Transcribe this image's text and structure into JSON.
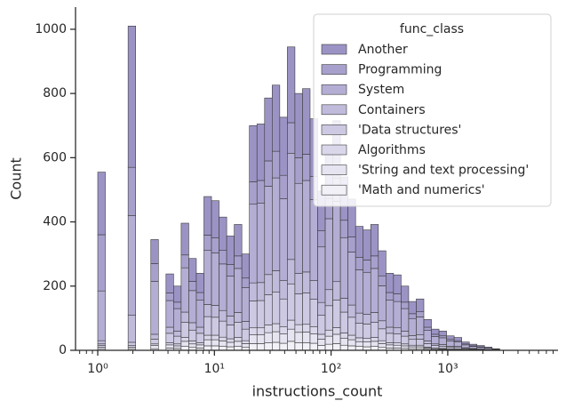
{
  "chart_data": {
    "type": "histogram",
    "stacked": true,
    "xlabel": "instructions_count",
    "ylabel": "Count",
    "xlog": true,
    "xlim": [
      0.645,
      8810
    ],
    "ylim": [
      0,
      1069
    ],
    "xticks": [
      {
        "value": 1,
        "label": "10⁰"
      },
      {
        "value": 10,
        "label": "10¹"
      },
      {
        "value": 100,
        "label": "10²"
      },
      {
        "value": 1000,
        "label": "10³"
      }
    ],
    "xticks_minor": [
      0.7,
      0.8,
      0.9,
      2,
      3,
      4,
      5,
      6,
      7,
      8,
      9,
      20,
      30,
      40,
      50,
      60,
      70,
      80,
      90,
      200,
      300,
      400,
      500,
      600,
      700,
      800,
      900,
      2000,
      3000,
      4000,
      5000,
      6000,
      7000,
      8000
    ],
    "yticks": [
      0,
      200,
      400,
      600,
      800,
      1000
    ],
    "legend_title": "func_class",
    "legend_position": "upper right",
    "edgecolor": "#3a3a3a",
    "bins": [
      1,
      1.161,
      1.349,
      1.567,
      1.82,
      2.113,
      2.455,
      2.851,
      3.311,
      3.846,
      4.467,
      5.188,
      6.026,
      6.998,
      8.128,
      9.441,
      10.96,
      12.74,
      14.79,
      17.18,
      19.95,
      23.17,
      26.92,
      31.26,
      36.31,
      42.17,
      48.98,
      56.89,
      66.07,
      76.74,
      89.13,
      103.5,
      120.2,
      139.6,
      162.2,
      188.4,
      218.8,
      254.1,
      295.1,
      342.8,
      398.1,
      462.4,
      537.0,
      623.7,
      724.4,
      841.4,
      977.2,
      1135,
      1318,
      1531,
      1778,
      2065,
      2399,
      2786
    ],
    "series": [
      {
        "name": "Another",
        "color": "#9c93c5",
        "values": [
          195,
          0,
          0,
          0,
          440,
          0,
          0,
          75,
          0,
          59,
          50,
          99,
          71,
          60,
          120,
          116,
          104,
          89,
          98,
          75,
          175,
          176,
          196,
          206,
          181,
          236,
          200,
          204,
          180,
          124,
          158,
          179,
          135,
          118,
          96,
          94,
          98,
          78,
          60,
          59,
          50,
          38,
          40,
          24,
          16,
          15,
          11,
          10,
          6,
          5,
          4,
          3,
          1
        ]
      },
      {
        "name": "Programming",
        "color": "#a8a0cc",
        "values": [
          175,
          0,
          0,
          0,
          150,
          0,
          0,
          55,
          0,
          24,
          20,
          40,
          29,
          24,
          48,
          47,
          42,
          36,
          39,
          30,
          70,
          71,
          79,
          83,
          73,
          95,
          80,
          82,
          72,
          50,
          63,
          72,
          54,
          47,
          39,
          38,
          39,
          31,
          24,
          24,
          20,
          15,
          16,
          10,
          7,
          6,
          5,
          4,
          3,
          2,
          2,
          1,
          1
        ]
      },
      {
        "name": "System",
        "color": "#b4aed4",
        "values": [
          155,
          0,
          0,
          0,
          310,
          0,
          0,
          165,
          0,
          83,
          70,
          138,
          100,
          84,
          168,
          163,
          145,
          124,
          137,
          105,
          245,
          247,
          275,
          289,
          254,
          331,
          280,
          285,
          252,
          173,
          221,
          250,
          189,
          165,
          135,
          131,
          137,
          109,
          84,
          82,
          70,
          53,
          56,
          33,
          23,
          21,
          16,
          14,
          9,
          6,
          5,
          4,
          2
        ]
      },
      {
        "name": "Containers",
        "color": "#c0bbdb",
        "values": [
          10,
          0,
          0,
          0,
          85,
          0,
          0,
          15,
          0,
          19,
          16,
          32,
          23,
          19,
          38,
          37,
          33,
          28,
          31,
          24,
          56,
          56,
          63,
          66,
          58,
          76,
          64,
          65,
          58,
          40,
          50,
          57,
          43,
          38,
          31,
          30,
          31,
          25,
          19,
          19,
          16,
          12,
          13,
          8,
          5,
          5,
          4,
          3,
          2,
          1,
          1,
          1,
          0
        ]
      },
      {
        "name": "'Data structures'",
        "color": "#cdc9e3",
        "values": [
          5,
          0,
          0,
          0,
          10,
          0,
          0,
          15,
          0,
          29,
          24,
          47,
          34,
          29,
          58,
          56,
          50,
          43,
          47,
          36,
          84,
          85,
          94,
          99,
          87,
          113,
          96,
          98,
          86,
          59,
          76,
          86,
          65,
          56,
          46,
          45,
          47,
          37,
          29,
          28,
          24,
          18,
          19,
          11,
          8,
          7,
          5,
          5,
          3,
          2,
          2,
          1,
          1
        ]
      },
      {
        "name": "Algorithms",
        "color": "#dad7ea",
        "values": [
          5,
          0,
          0,
          0,
          5,
          0,
          0,
          5,
          0,
          7,
          6,
          12,
          9,
          7,
          14,
          14,
          12,
          11,
          12,
          9,
          21,
          21,
          24,
          25,
          22,
          28,
          24,
          24,
          22,
          15,
          19,
          21,
          16,
          14,
          12,
          11,
          12,
          9,
          7,
          7,
          6,
          5,
          5,
          3,
          2,
          2,
          1,
          1,
          1,
          1,
          0,
          0,
          0
        ]
      },
      {
        "name": "'String and text processing'",
        "color": "#e6e4f1",
        "values": [
          5,
          0,
          0,
          0,
          5,
          0,
          0,
          10,
          0,
          10,
          8,
          16,
          11,
          10,
          19,
          19,
          17,
          14,
          16,
          12,
          28,
          28,
          31,
          33,
          29,
          38,
          32,
          33,
          29,
          20,
          25,
          29,
          22,
          19,
          15,
          15,
          16,
          12,
          10,
          9,
          8,
          6,
          6,
          4,
          3,
          2,
          2,
          2,
          1,
          1,
          1,
          0,
          0
        ]
      },
      {
        "name": "'Math and numerics'",
        "color": "#f2f1f7",
        "values": [
          5,
          0,
          0,
          0,
          5,
          0,
          0,
          5,
          0,
          7,
          6,
          12,
          9,
          7,
          14,
          14,
          12,
          11,
          12,
          9,
          21,
          21,
          24,
          25,
          22,
          28,
          24,
          24,
          22,
          15,
          19,
          21,
          16,
          14,
          12,
          11,
          12,
          9,
          7,
          7,
          6,
          5,
          5,
          3,
          2,
          2,
          1,
          1,
          1,
          1,
          0,
          0,
          0
        ]
      }
    ]
  }
}
